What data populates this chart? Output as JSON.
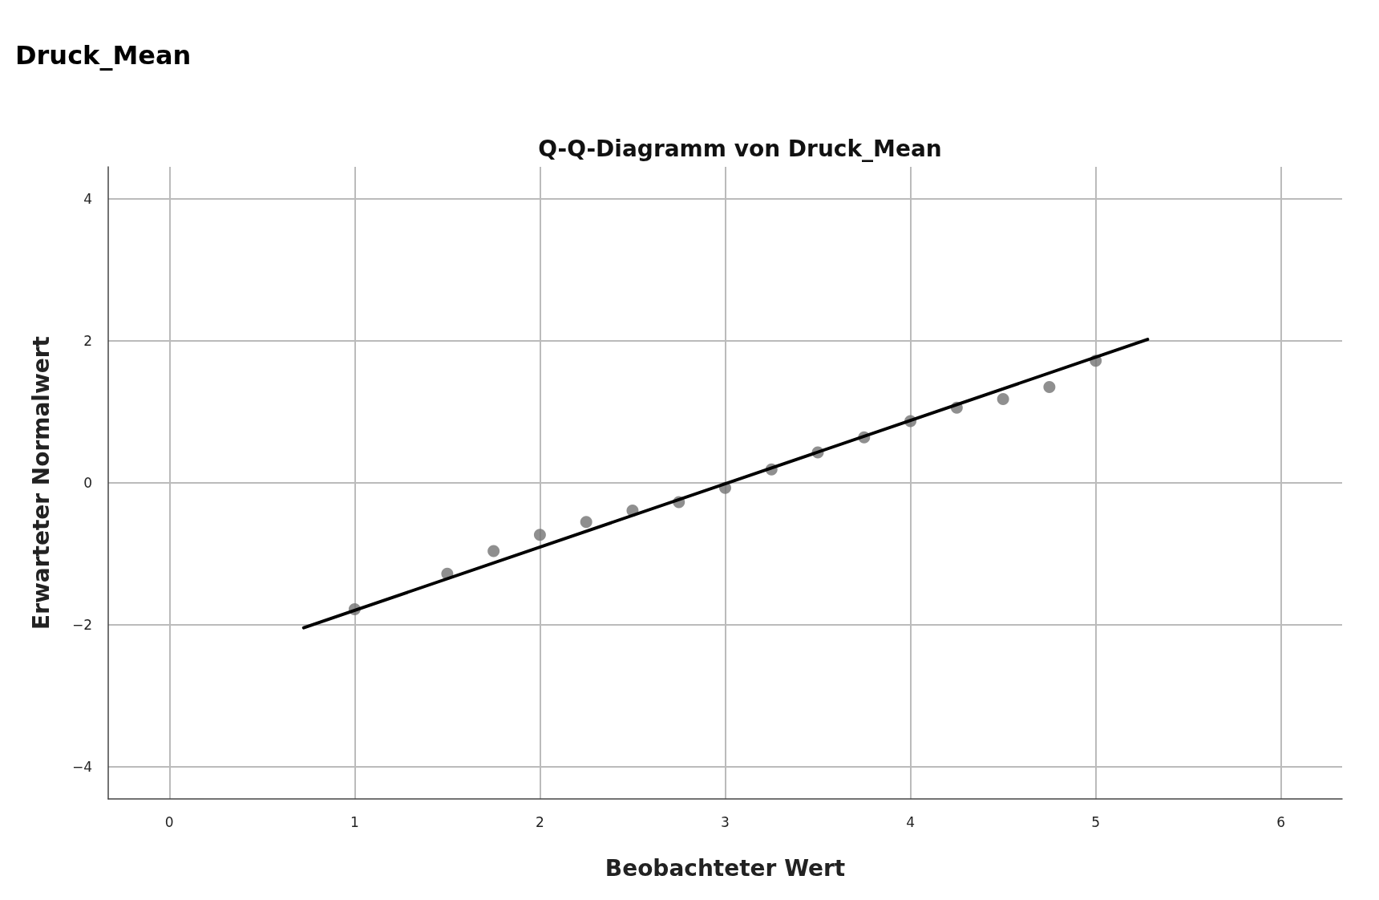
{
  "chart_data": {
    "type": "scatter",
    "title": "Druck_Mean",
    "subtitle": "Q-Q-Diagramm von Druck_Mean",
    "xlabel": "Beobachteter Wert",
    "ylabel": "Erwarteter Normalwert",
    "xlim": [
      -0.33,
      6.33
    ],
    "ylim": [
      -4.45,
      4.45
    ],
    "xticks": [
      0,
      1,
      2,
      3,
      4,
      5,
      6
    ],
    "yticks": [
      -4,
      -2,
      0,
      2,
      4
    ],
    "grid": true,
    "marker": "circle",
    "series": [
      {
        "color": "#737373",
        "x": [
          1,
          1.5,
          1.75,
          2,
          2.25,
          2.5,
          2.75,
          3,
          3.25,
          3.5,
          3.75,
          4,
          4.25,
          4.5,
          4.75,
          5
        ],
        "values": [
          -1.78,
          -1.28,
          -0.96,
          -0.73,
          -0.55,
          -0.39,
          -0.27,
          -0.07,
          0.19,
          0.43,
          0.64,
          0.87,
          1.06,
          1.18,
          1.35,
          1.72
        ]
      },
      {
        "type": "line",
        "color": "#000000",
        "marker": "none",
        "line_style": "solid",
        "x": [
          0.725,
          5.28
        ],
        "values": [
          -2.04,
          2.02
        ]
      }
    ]
  }
}
